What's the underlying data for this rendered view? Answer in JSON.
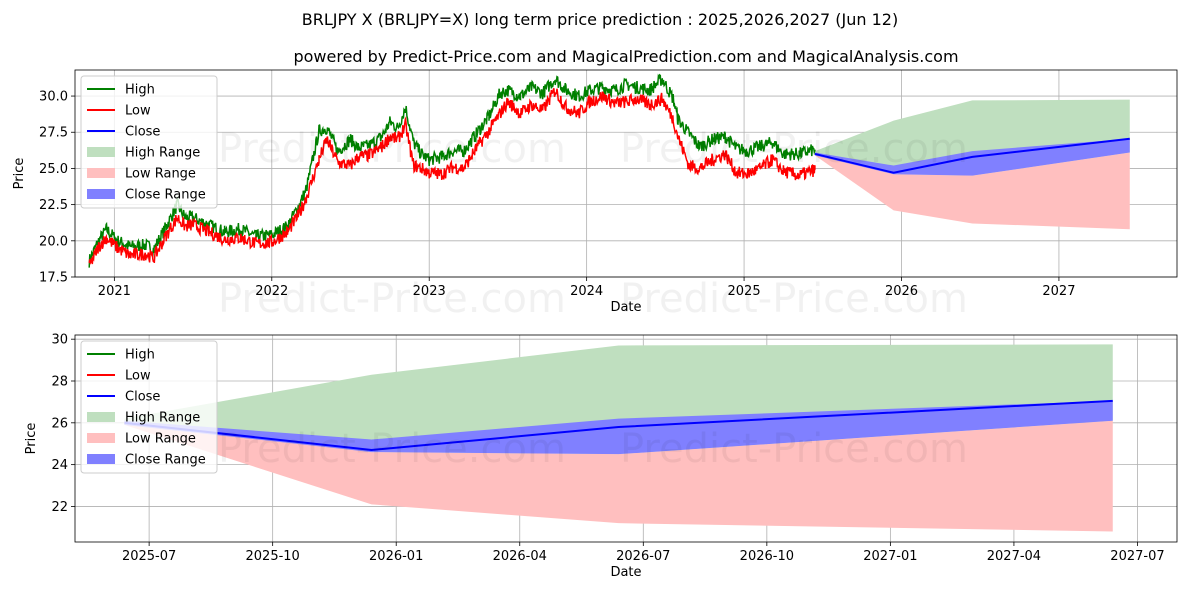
{
  "title": "BRLJPY X (BRLJPY=X) long term price prediction : 2025,2026,2027 (Jun 12)",
  "subtitle": "powered by Predict-Price.com and MagicalPrediction.com and MagicalAnalysis.com",
  "watermark": "Predict-Price.com",
  "colors": {
    "high": "#008000",
    "low": "#ff0000",
    "close": "#0000ff",
    "high_range": "#bfdfbf",
    "low_range": "#ffbfbf",
    "close_range": "#8080ff",
    "grid": "#b0b0b0"
  },
  "chart_data": [
    {
      "type": "line",
      "name": "long-term-history-and-forecast",
      "xlabel": "Date",
      "ylabel": "Price",
      "xlim": [
        2020.75,
        2027.75
      ],
      "ylim": [
        17.5,
        31.8
      ],
      "x_ticks": [
        2021,
        2022,
        2023,
        2024,
        2025,
        2026,
        2027
      ],
      "x_tick_labels": [
        "2021",
        "2022",
        "2023",
        "2024",
        "2025",
        "2026",
        "2027"
      ],
      "y_ticks": [
        17.5,
        20.0,
        22.5,
        25.0,
        27.5,
        30.0
      ],
      "y_tick_labels": [
        "17.5",
        "20.0",
        "22.5",
        "25.0",
        "27.5",
        "30.0"
      ],
      "grid": true,
      "legend_position": "top-left",
      "legend": [
        "High",
        "Low",
        "Close",
        "High Range",
        "Low Range",
        "Close Range"
      ],
      "history": {
        "x": [
          2020.84,
          2020.9,
          2020.95,
          2021.02,
          2021.1,
          2021.2,
          2021.25,
          2021.33,
          2021.4,
          2021.45,
          2021.5,
          2021.6,
          2021.7,
          2021.8,
          2021.9,
          2022.0,
          2022.1,
          2022.18,
          2022.22,
          2022.3,
          2022.35,
          2022.42,
          2022.5,
          2022.55,
          2022.62,
          2022.7,
          2022.75,
          2022.8,
          2022.85,
          2022.9,
          2022.95,
          2023.0,
          2023.08,
          2023.15,
          2023.22,
          2023.3,
          2023.38,
          2023.45,
          2023.5,
          2023.58,
          2023.65,
          2023.72,
          2023.8,
          2023.87,
          2023.95,
          2024.02,
          2024.1,
          2024.18,
          2024.25,
          2024.32,
          2024.4,
          2024.48,
          2024.55,
          2024.58,
          2024.65,
          2024.72,
          2024.8,
          2024.88,
          2024.95,
          2025.02,
          2025.1,
          2025.18,
          2025.25,
          2025.35,
          2025.45
        ],
        "low": [
          18.2,
          19.6,
          20.2,
          19.5,
          19.0,
          19.1,
          18.8,
          20.4,
          21.6,
          21.0,
          21.1,
          20.6,
          20.1,
          20.2,
          19.8,
          19.9,
          20.6,
          22.0,
          23.0,
          25.6,
          27.0,
          25.4,
          25.2,
          25.8,
          25.9,
          26.5,
          27.2,
          27.0,
          28.0,
          25.2,
          25.0,
          24.7,
          24.6,
          25.1,
          25.0,
          26.4,
          27.6,
          28.8,
          29.6,
          28.8,
          29.4,
          29.0,
          30.4,
          29.2,
          28.8,
          29.6,
          30.0,
          29.5,
          29.6,
          29.8,
          29.4,
          29.8,
          28.4,
          27.2,
          25.2,
          25.0,
          25.6,
          26.0,
          24.7,
          24.6,
          25.0,
          25.6,
          24.8,
          24.5,
          24.9
        ],
        "high": [
          18.6,
          20.0,
          20.8,
          20.0,
          19.6,
          19.7,
          19.4,
          21.0,
          22.5,
          21.6,
          21.6,
          21.1,
          20.6,
          20.8,
          20.3,
          20.4,
          21.0,
          22.6,
          23.6,
          27.6,
          27.8,
          26.2,
          27.0,
          26.4,
          26.6,
          27.2,
          28.2,
          27.8,
          29.2,
          26.8,
          26.0,
          25.6,
          25.8,
          26.2,
          26.2,
          27.4,
          28.6,
          30.2,
          30.4,
          30.0,
          30.6,
          30.2,
          31.2,
          30.4,
          30.0,
          30.4,
          30.6,
          30.4,
          30.8,
          30.6,
          30.4,
          31.2,
          29.8,
          28.4,
          27.4,
          26.5,
          27.0,
          27.2,
          26.4,
          26.2,
          26.5,
          26.8,
          26.0,
          26.0,
          26.3
        ]
      },
      "forecast": {
        "x": [
          2025.45,
          2025.95,
          2026.45,
          2027.45
        ],
        "close": [
          26.0,
          24.7,
          25.8,
          27.05
        ],
        "close_range_low": [
          25.9,
          24.6,
          24.5,
          26.1
        ],
        "close_range_high": [
          26.1,
          25.2,
          26.2,
          27.05
        ],
        "high_range_low": [
          25.9,
          24.6,
          24.5,
          26.1
        ],
        "high_range_high": [
          26.2,
          28.3,
          29.7,
          29.75
        ],
        "low_range_low": [
          25.9,
          22.1,
          21.2,
          20.8
        ],
        "low_range_high": [
          26.0,
          24.6,
          24.5,
          26.1
        ]
      }
    },
    {
      "type": "line",
      "name": "forecast-zoom",
      "xlabel": "Date",
      "ylabel": "Price",
      "xlim": [
        2025.35,
        2027.58
      ],
      "ylim": [
        20.3,
        30.2
      ],
      "x_ticks": [
        2025.5,
        2025.75,
        2026.0,
        2026.25,
        2026.5,
        2026.75,
        2027.0,
        2027.25,
        2027.5
      ],
      "x_tick_labels": [
        "2025-07",
        "2025-10",
        "2026-01",
        "2026-04",
        "2026-07",
        "2026-10",
        "2027-01",
        "2027-04",
        "2027-07"
      ],
      "y_ticks": [
        22,
        24,
        26,
        28,
        30
      ],
      "y_tick_labels": [
        "22",
        "24",
        "26",
        "28",
        "30"
      ],
      "grid": true,
      "legend_position": "top-left",
      "legend": [
        "High",
        "Low",
        "Close",
        "High Range",
        "Low Range",
        "Close Range"
      ],
      "forecast": {
        "x": [
          2025.45,
          2025.95,
          2026.45,
          2027.45
        ],
        "close": [
          26.0,
          24.7,
          25.8,
          27.05
        ],
        "close_range_low": [
          25.9,
          24.6,
          24.5,
          26.1
        ],
        "close_range_high": [
          26.1,
          25.2,
          26.2,
          27.05
        ],
        "high_range_low": [
          25.9,
          24.6,
          24.5,
          26.1
        ],
        "high_range_high": [
          26.2,
          28.3,
          29.7,
          29.75
        ],
        "low_range_low": [
          25.9,
          22.1,
          21.2,
          20.8
        ],
        "low_range_high": [
          26.0,
          24.6,
          24.5,
          26.1
        ]
      }
    }
  ]
}
